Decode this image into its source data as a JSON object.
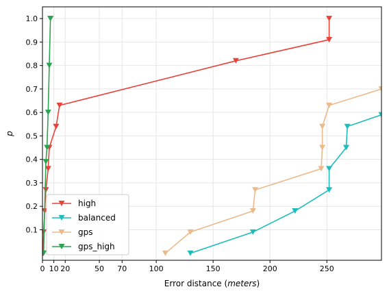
{
  "chart_data": {
    "type": "line",
    "xlabel_prefix": "Error distance (",
    "xlabel_unit": "meters",
    "xlabel_suffix": ")",
    "ylabel": "p",
    "xlim": [
      0,
      298
    ],
    "ylim": [
      -0.03,
      1.05
    ],
    "xticks": [
      0,
      10,
      20,
      50,
      70,
      100,
      150,
      200,
      250
    ],
    "xtick_labels": [
      "0",
      "10",
      "20",
      "50",
      "70",
      "100",
      "150",
      "200",
      "250"
    ],
    "yticks": [
      0.1,
      0.2,
      0.3,
      0.4,
      0.5,
      0.6,
      0.7,
      0.8,
      0.9,
      1.0
    ],
    "ytick_labels": [
      "0.1",
      "0.2",
      "0.3",
      "0.4",
      "0.5",
      "0.6",
      "0.7",
      "0.8",
      "0.9",
      "1.0"
    ],
    "grid": true,
    "legend_position": "lower-left",
    "series": [
      {
        "name": "high",
        "color": "#e8423a",
        "x": [
          0.5,
          1,
          2,
          3,
          5,
          6,
          12,
          15,
          170,
          252,
          252
        ],
        "y": [
          0.0,
          0.09,
          0.18,
          0.27,
          0.36,
          0.45,
          0.54,
          0.63,
          0.82,
          0.91,
          1.0
        ]
      },
      {
        "name": "balanced",
        "color": "#1dbdbb",
        "x": [
          130,
          185,
          222,
          252,
          252,
          267,
          268,
          298
        ],
        "y": [
          0.0,
          0.09,
          0.18,
          0.27,
          0.36,
          0.45,
          0.54,
          0.59
        ]
      },
      {
        "name": "gps",
        "color": "#ecb98a",
        "x": [
          108,
          130,
          185,
          187,
          245,
          246,
          246,
          252,
          298
        ],
        "y": [
          0.0,
          0.09,
          0.18,
          0.27,
          0.36,
          0.45,
          0.54,
          0.63,
          0.7
        ]
      },
      {
        "name": "gps_high",
        "color": "#2ca351",
        "x": [
          1,
          3,
          4,
          5,
          6,
          7,
          7
        ],
        "y": [
          0.0,
          0.39,
          0.45,
          0.6,
          0.8,
          1.0,
          1.0
        ]
      }
    ]
  }
}
